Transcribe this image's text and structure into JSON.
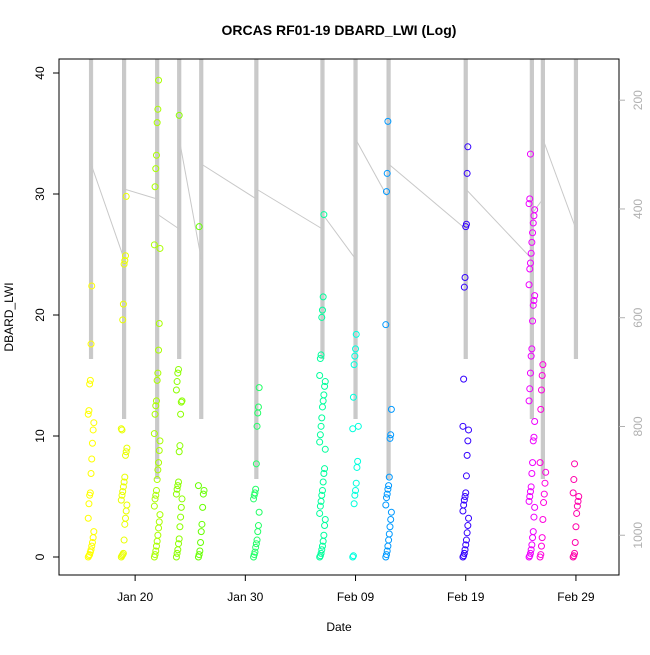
{
  "chart_data": {
    "type": "scatter",
    "title": "ORCAS RF01-19 DBARD_LWI (Log)",
    "xlabel": "Date",
    "ylabel": "DBARD_LWI",
    "x_ticks": [
      "Jan 20",
      "Jan 30",
      "Feb 09",
      "Feb 19",
      "Feb 29"
    ],
    "y_ticks": [
      "0",
      "10",
      "20",
      "30",
      "40"
    ],
    "right_ticks": [
      "200",
      "400",
      "600",
      "800",
      "1000"
    ],
    "xlim": [
      "2016-01-14",
      "2016-03-03"
    ],
    "ylim": [
      0,
      40
    ],
    "right_axis_range": [
      150,
      1040
    ],
    "right_axis_reversed": true,
    "grid": false,
    "flights": [
      {
        "date": "2016-01-16",
        "color": "#ffff00",
        "values": [
          0,
          0.1,
          0.2,
          0.4,
          0.6,
          0.9,
          1.2,
          1.6,
          2.1,
          3.2,
          4.4,
          5.1,
          5.3,
          6.9,
          8.1,
          9.4,
          10.5,
          11.1,
          11.8,
          12.1,
          14.3,
          14.6,
          17.6,
          22.4
        ]
      },
      {
        "date": "2016-01-19",
        "color": "#eaff00",
        "values": [
          0,
          0.1,
          0.2,
          0.3,
          1.4,
          2.7,
          3.2,
          3.8,
          4.3,
          4.7,
          5.1,
          5.4,
          5.8,
          6.2,
          6.6,
          8.4,
          8.7,
          9.0,
          10.6,
          10.5,
          19.6,
          20.9,
          24.2,
          24.5,
          24.9,
          29.8
        ]
      },
      {
        "date": "2016-01-22",
        "color": "#aaff00",
        "values": [
          0,
          0.2,
          0.5,
          0.9,
          1.3,
          1.8,
          2.4,
          2.9,
          3.5,
          4.2,
          4.8,
          5.1,
          5.5,
          6.4,
          7.2,
          7.8,
          8.8,
          9.6,
          10.2,
          11.8,
          12.5,
          12.9,
          14.6,
          15.2,
          17.1,
          19.3,
          25.5,
          25.8,
          30.6,
          32.1,
          33.2,
          35.9,
          37.0,
          39.4
        ]
      },
      {
        "date": "2016-01-24",
        "color": "#8cff00",
        "values": [
          0,
          0.3,
          0.6,
          1.1,
          1.5,
          2.5,
          3.3,
          4.1,
          4.8,
          5.2,
          5.6,
          5.9,
          6.2,
          8.7,
          9.2,
          11.8,
          12.8,
          12.9,
          13.8,
          14.5,
          15.2,
          15.5,
          36.5
        ]
      },
      {
        "date": "2016-01-26",
        "color": "#66ff00",
        "values": [
          0,
          0.2,
          0.5,
          1.2,
          2.1,
          2.7,
          4.1,
          5.2,
          5.5,
          5.9,
          27.3
        ]
      },
      {
        "date": "2016-01-31",
        "color": "#22ff66",
        "values": [
          0,
          0.2,
          0.4,
          0.8,
          1.1,
          1.4,
          2.1,
          2.6,
          3.7,
          4.8,
          5.1,
          5.3,
          5.6,
          7.7,
          10.8,
          11.9,
          12.4,
          14.0
        ]
      },
      {
        "date": "2016-02-06",
        "color": "#00ff9c",
        "values": [
          0,
          0.1,
          0.3,
          0.6,
          0.9,
          1.3,
          1.8,
          2.6,
          3.1,
          3.6,
          4.2,
          4.6,
          5.1,
          5.5,
          6.2,
          6.9,
          7.3,
          8.9,
          9.5,
          10.1,
          10.8,
          11.5,
          12.4,
          12.9,
          13.4,
          14.1,
          14.5,
          15.0,
          16.4,
          16.7,
          19.8,
          20.4,
          21.5,
          28.3
        ]
      },
      {
        "date": "2016-02-09",
        "color": "#00ffdd",
        "values": [
          0,
          0.1,
          4.4,
          5.1,
          5.5,
          6.1,
          7.4,
          7.9,
          10.8,
          10.6,
          13.2,
          15.9,
          16.6,
          17.2,
          18.4
        ]
      },
      {
        "date": "2016-02-12",
        "color": "#0099ff",
        "values": [
          0,
          0.2,
          0.5,
          0.9,
          1.4,
          1.9,
          2.5,
          3.1,
          3.7,
          4.3,
          4.9,
          5.2,
          5.6,
          5.9,
          6.6,
          9.8,
          10.1,
          12.2,
          19.2,
          30.2,
          31.7,
          36.0
        ]
      },
      {
        "date": "2016-02-19",
        "color": "#3300ff",
        "values": [
          0,
          0.1,
          0.3,
          0.6,
          1.0,
          1.4,
          2.0,
          2.6,
          3.2,
          3.8,
          4.3,
          4.7,
          5.0,
          5.3,
          6.7,
          8.4,
          9.6,
          10.5,
          10.8,
          14.7,
          22.3,
          23.1,
          27.3,
          27.5,
          31.7,
          33.9
        ]
      },
      {
        "date": "2016-02-25",
        "color": "#ee00ff",
        "values": [
          0,
          0.1,
          0.3,
          0.6,
          1.0,
          1.6,
          2.1,
          3.3,
          4.1,
          4.6,
          5.0,
          5.4,
          5.8,
          6.9,
          7.8,
          9.6,
          9.9,
          11.2,
          12.9,
          13.9,
          15.2,
          16.6,
          17.2,
          19.5,
          20.8,
          21.2,
          21.6,
          22.5,
          23.8,
          24.3,
          25.1,
          26.0,
          26.8,
          27.6,
          28.2,
          28.7,
          29.2,
          29.6,
          33.3
        ]
      },
      {
        "date": "2016-02-26",
        "color": "#ff00dd",
        "values": [
          0,
          0.2,
          0.9,
          1.6,
          3.1,
          4.5,
          5.2,
          6.1,
          7.0,
          7.8,
          12.2,
          13.8,
          15.0,
          15.9
        ]
      },
      {
        "date": "2016-02-29",
        "color": "#ff00aa",
        "values": [
          0,
          0.1,
          0.3,
          1.2,
          2.5,
          3.6,
          4.2,
          4.6,
          5.0,
          5.3,
          6.4,
          7.7
        ]
      }
    ],
    "pressure_track_color": "#c8c8c8"
  }
}
